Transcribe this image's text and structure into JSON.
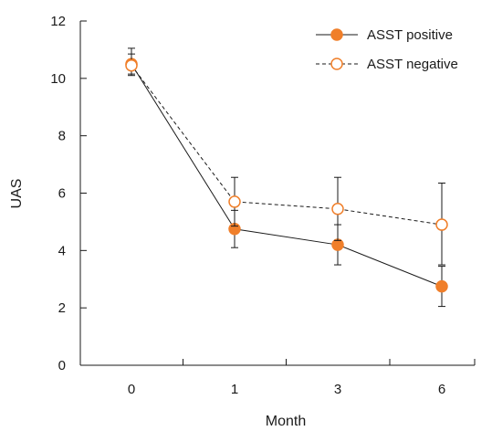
{
  "chart_data": {
    "type": "line",
    "x": [
      "0",
      "1",
      "3",
      "6"
    ],
    "xlabel": "Month",
    "ylabel": "UAS",
    "ylim": [
      0,
      12
    ],
    "yticks": [
      "0",
      "2",
      "4",
      "6",
      "8",
      "10",
      "12"
    ],
    "grid": false,
    "legend": "top-right",
    "series": [
      {
        "name": "ASST positive",
        "values": [
          10.5,
          4.75,
          4.2,
          2.75
        ],
        "error_low": [
          10.15,
          4.1,
          3.5,
          2.05
        ],
        "error_high": [
          10.85,
          5.4,
          4.9,
          3.45
        ],
        "color": "#f07f2a",
        "marker": "filled-circle",
        "line_style": "solid"
      },
      {
        "name": "ASST negative",
        "values": [
          10.45,
          5.7,
          5.45,
          4.9
        ],
        "error_low": [
          10.1,
          4.85,
          4.35,
          3.5
        ],
        "error_high": [
          11.05,
          6.55,
          6.55,
          6.35
        ],
        "color": "#f07f2a",
        "marker": "open-circle",
        "line_style": "dashed"
      }
    ]
  }
}
